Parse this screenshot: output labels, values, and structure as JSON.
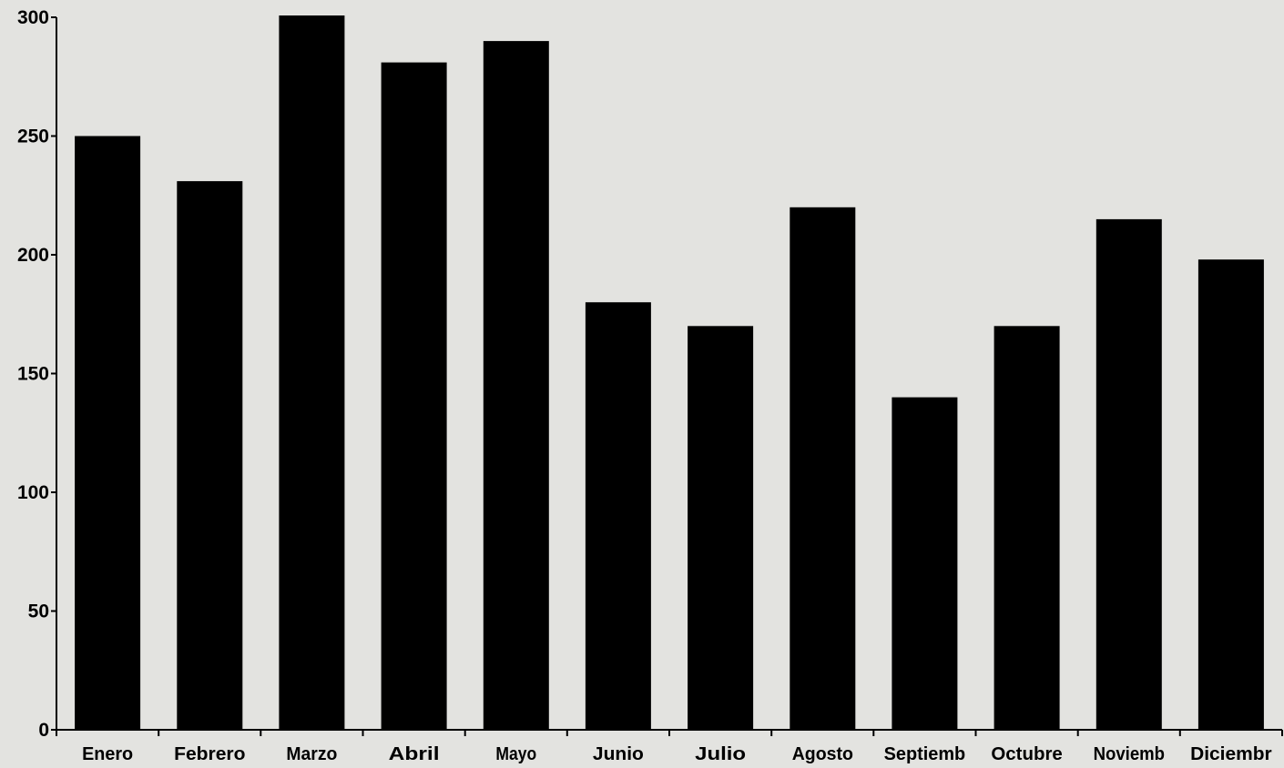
{
  "chart_data": {
    "type": "bar",
    "title": "",
    "xlabel": "",
    "ylabel": "",
    "categories": [
      "Enero",
      "Febrero",
      "Marzo",
      "Abril",
      "Mayo",
      "Junio",
      "Julio",
      "Agosto",
      "Septiemb",
      "Octubre",
      "Noviemb",
      "Diciembr"
    ],
    "values": [
      250,
      231,
      301,
      281,
      290,
      180,
      170,
      220,
      140,
      170,
      215,
      198
    ],
    "ylim": [
      0,
      300
    ],
    "yticks": [
      "0",
      "50",
      "100",
      "150",
      "200",
      "250",
      "300"
    ],
    "grid": false,
    "legend": "none",
    "colors": {
      "bar": "#000000",
      "axis": "#000000",
      "background": "#e3e3e0"
    }
  }
}
